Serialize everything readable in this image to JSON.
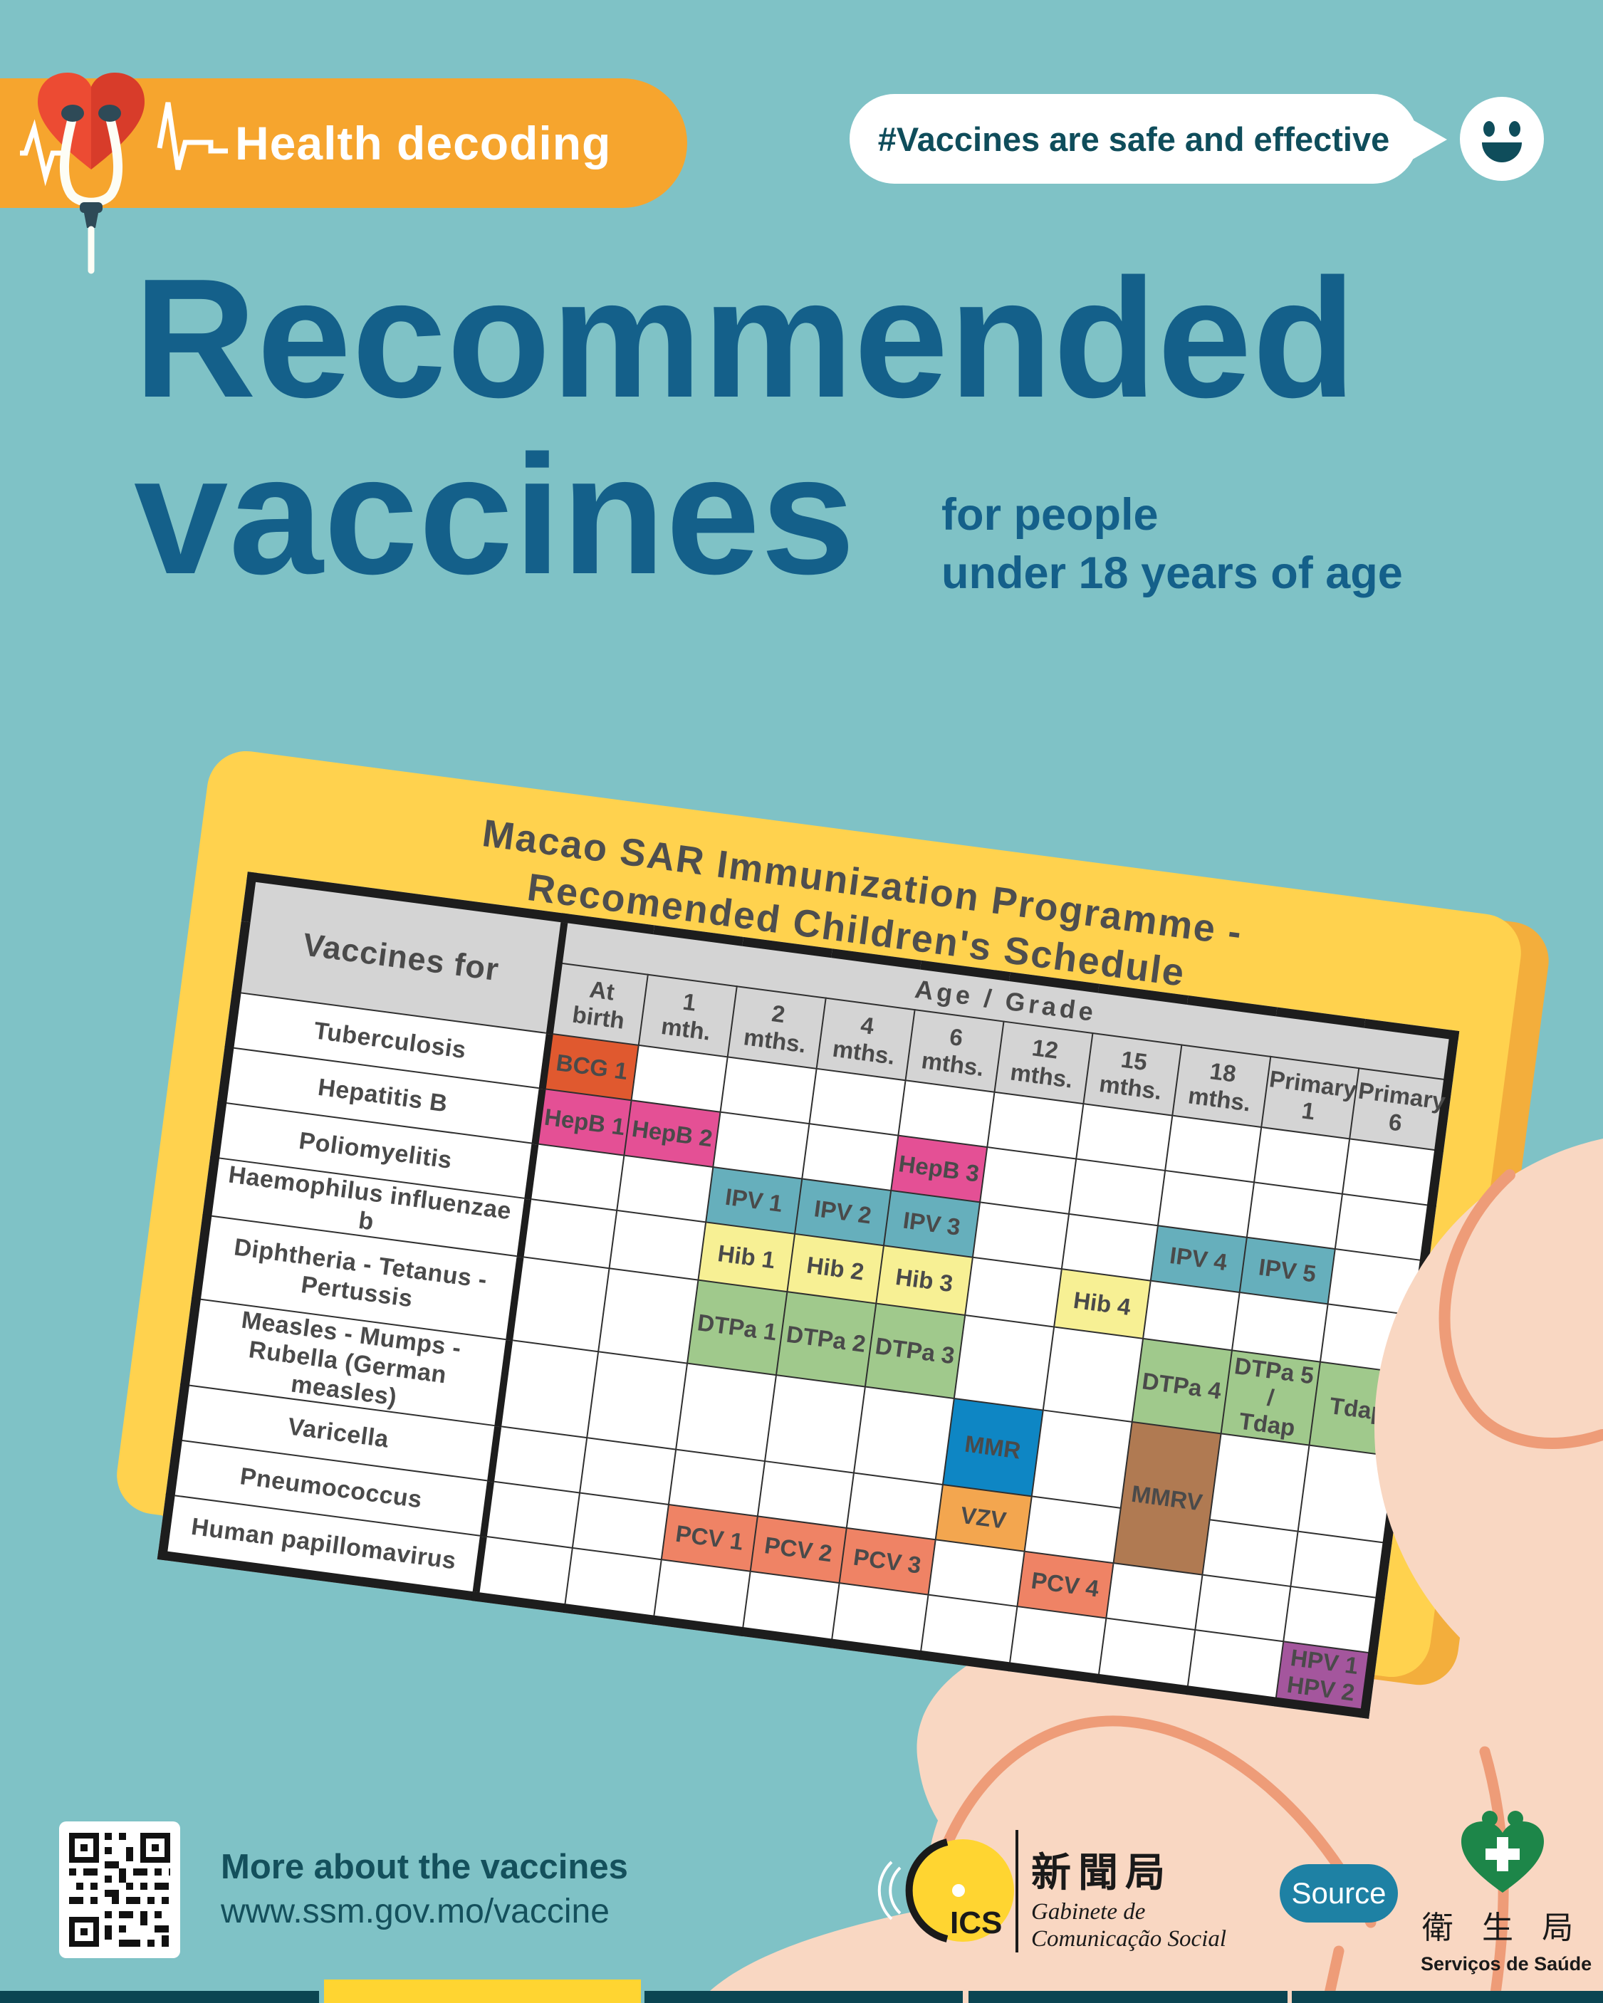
{
  "header": {
    "badge_label": "Health decoding",
    "hashtag": "#Vaccines are safe and effective"
  },
  "title": {
    "line1": "Recommended",
    "line2": "vaccines",
    "subtitle_line1": "for people",
    "subtitle_line2": "under 18 years of age"
  },
  "card": {
    "title_line1": "Macao SAR Immunization Programme -",
    "title_line2": "Recomended Children's Schedule"
  },
  "schedule": {
    "corner_header": "Vaccines for",
    "age_header": "Age / Grade",
    "columns": [
      "At birth",
      "1\nmth.",
      "2\nmths.",
      "4\nmths.",
      "6\nmths.",
      "12\nmths.",
      "15\nmths.",
      "18\nmths.",
      "Primary\n1",
      "Primary\n6"
    ],
    "rows": [
      {
        "label": "Tuberculosis",
        "cells": [
          {
            "col": 0,
            "text": "BCG 1",
            "color": "#E0592F"
          }
        ]
      },
      {
        "label": "Hepatitis B",
        "cells": [
          {
            "col": 0,
            "text": "HepB 1",
            "color": "#E45095"
          },
          {
            "col": 1,
            "text": "HepB 2",
            "color": "#E45095"
          },
          {
            "col": 4,
            "text": "HepB 3",
            "color": "#E45095"
          }
        ]
      },
      {
        "label": "Poliomyelitis",
        "cells": [
          {
            "col": 2,
            "text": "IPV 1",
            "color": "#66AFBC"
          },
          {
            "col": 3,
            "text": "IPV 2",
            "color": "#66AFBC"
          },
          {
            "col": 4,
            "text": "IPV 3",
            "color": "#66AFBC"
          },
          {
            "col": 7,
            "text": "IPV 4",
            "color": "#66AFBC"
          },
          {
            "col": 8,
            "text": "IPV 5",
            "color": "#66AFBC"
          }
        ]
      },
      {
        "label": "Haemophilus influenzae b",
        "cells": [
          {
            "col": 2,
            "text": "Hib 1",
            "color": "#F7F094"
          },
          {
            "col": 3,
            "text": "Hib 2",
            "color": "#F7F094"
          },
          {
            "col": 4,
            "text": "Hib 3",
            "color": "#F7F094"
          },
          {
            "col": 6,
            "text": "Hib 4",
            "color": "#F7F094"
          }
        ]
      },
      {
        "label": "Diphtheria - Tetanus - Pertussis",
        "cells": [
          {
            "col": 2,
            "text": "DTPa 1",
            "color": "#A0C98C"
          },
          {
            "col": 3,
            "text": "DTPa 2",
            "color": "#A0C98C"
          },
          {
            "col": 4,
            "text": "DTPa 3",
            "color": "#A0C98C"
          },
          {
            "col": 7,
            "text": "DTPa 4",
            "color": "#A0C98C"
          },
          {
            "col": 8,
            "text": "DTPa 5 /\nTdap",
            "color": "#A0C98C"
          },
          {
            "col": 9,
            "text": "Tdap",
            "color": "#A0C98C"
          }
        ]
      },
      {
        "label": "Measles - Mumps - Rubella (German measles)",
        "cells": [
          {
            "col": 5,
            "text": "MMR",
            "color": "#0E86C4"
          },
          {
            "col": 7,
            "text": "MMRV",
            "color": "#B07A52",
            "rowspan": 2
          }
        ]
      },
      {
        "label": "Varicella",
        "omit": [
          7
        ],
        "cells": [
          {
            "col": 5,
            "text": "VZV",
            "color": "#F3A64F"
          }
        ]
      },
      {
        "label": "Pneumococcus",
        "cells": [
          {
            "col": 2,
            "text": "PCV 1",
            "color": "#EF8365"
          },
          {
            "col": 3,
            "text": "PCV 2",
            "color": "#EF8365"
          },
          {
            "col": 4,
            "text": "PCV 3",
            "color": "#EF8365"
          },
          {
            "col": 6,
            "text": "PCV 4",
            "color": "#EF8365"
          }
        ]
      },
      {
        "label": "Human papillomavirus",
        "cells": [
          {
            "col": 9,
            "text": "HPV 1\nHPV 2",
            "color": "#A4569D"
          }
        ]
      }
    ]
  },
  "footer": {
    "more_label": "More about the vaccines",
    "url": "www.ssm.gov.mo/vaccine",
    "source_label": "Source",
    "gcs": {
      "abbr": "ICS",
      "chinese": "新聞局",
      "line1": "Gabinete de",
      "line2": "Comunicação Social"
    },
    "ssm": {
      "chinese": "衛 生 局",
      "portuguese": "Serviços de Saúde"
    }
  },
  "colors": {
    "background": "#7FC2C6",
    "badge_orange": "#F6A52E",
    "title_blue": "#14608A",
    "dark_teal_text": "#0F4D5B",
    "card_yellow": "#FFD24E",
    "card_edge_yellow": "#F3AE3C",
    "table_header_gray": "#D4D4D4",
    "bcg": "#E0592F",
    "hepb": "#E45095",
    "ipv": "#66AFBC",
    "hib": "#F7F094",
    "dtpa": "#A0C98C",
    "mmr": "#0E86C4",
    "vzv": "#F3A64F",
    "mmrv": "#B07A52",
    "pcv": "#EF8365",
    "hpv": "#A4569D",
    "skin": "#F9D7C2",
    "skin_line": "#EE9C78",
    "source_teal": "#1E81A4",
    "strip_teal": "#0B4552",
    "strip_yellow": "#FFD531",
    "ssm_green": "#1D8649",
    "heart_red": "#EC4B33"
  }
}
